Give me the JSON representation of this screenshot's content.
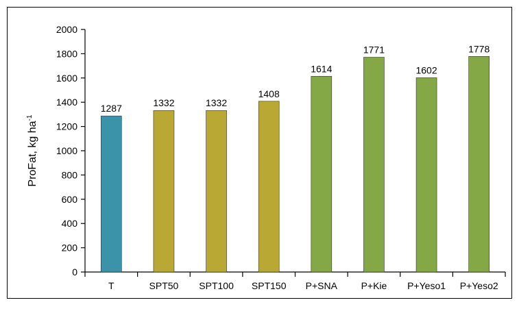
{
  "chart_data": {
    "type": "bar",
    "ylabel": "ProFat, kg ha",
    "ylabel_superscript": "-1",
    "categories": [
      "T",
      "SPT50",
      "SPT100",
      "SPT150",
      "P+SNA",
      "P+Kie",
      "P+Yeso1",
      "P+Yeso2"
    ],
    "values": [
      1287,
      1332,
      1332,
      1408,
      1614,
      1771,
      1602,
      1778
    ],
    "colors": [
      "#3a93a8",
      "#b9a934",
      "#b9a934",
      "#b9a934",
      "#84a845",
      "#84a845",
      "#84a845",
      "#84a845"
    ],
    "ylim": [
      0,
      2000
    ],
    "yticks": [
      0,
      200,
      400,
      600,
      800,
      1000,
      1200,
      1400,
      1600,
      1800,
      2000
    ],
    "grid": false,
    "value_labels_shown": true
  }
}
